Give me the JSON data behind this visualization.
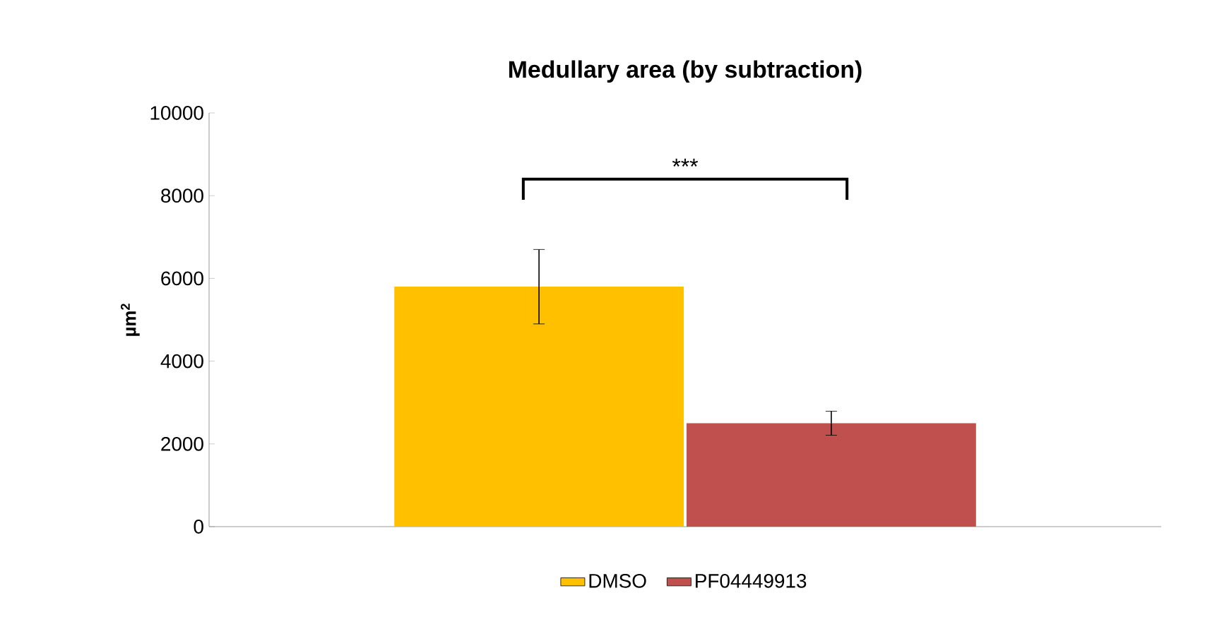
{
  "chart_data": {
    "type": "bar",
    "title": "Medullary area (by subtraction)",
    "ylabel": "µm$^{2}$",
    "categories": [
      null
    ],
    "series": [
      {
        "name": "DMSO",
        "color": "#ffc000",
        "values": [
          5800
        ],
        "errors": [
          900
        ]
      },
      {
        "name": "PF04449913",
        "color": "#c0504d",
        "values": [
          2500
        ],
        "errors": [
          290
        ]
      }
    ],
    "ylim": [
      0,
      10000
    ],
    "yticks": [
      0,
      2000,
      4000,
      6000,
      8000,
      10000
    ],
    "legend": "bottom",
    "annotations": [
      "***"
    ]
  }
}
